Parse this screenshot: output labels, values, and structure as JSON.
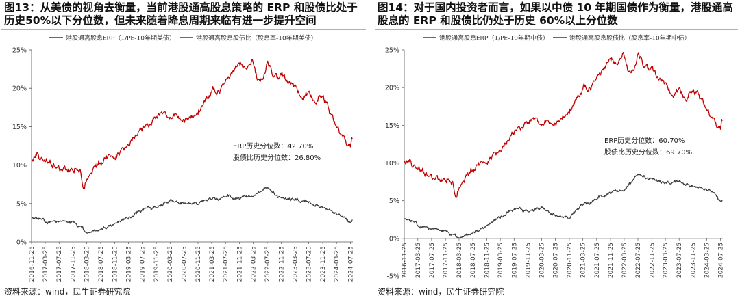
{
  "source_text": "资料来源：wind，民生证券研究院",
  "colors": {
    "erp": "#c00000",
    "dividend": "#3c3c3c",
    "axis": "#555555",
    "title": "#111111"
  },
  "chart_data": [
    {
      "id": "fig13",
      "type": "line",
      "title": "图13：从美债的视角去衡量，当前港股通高股息策略的 ERP 和股债比处于历史50%以下分位数，但未来随着降息周期来临有进一步提升空间",
      "xlabel": "",
      "ylabel": "",
      "ylim": [
        0,
        25
      ],
      "yticks": [
        "0%",
        "5%",
        "10%",
        "15%",
        "20%",
        "25%"
      ],
      "x_range": [
        "2016-11-25",
        "2024-08-15"
      ],
      "xticks": [
        "2016-11-25",
        "2017-03-25",
        "2017-07-25",
        "2017-11-25",
        "2018-03-25",
        "2018-07-25",
        "2018-11-25",
        "2019-03-25",
        "2019-07-25",
        "2019-11-25",
        "2020-03-25",
        "2020-07-25",
        "2020-11-25",
        "2021-03-25",
        "2021-07-25",
        "2021-11-25",
        "2022-03-25",
        "2022-07-25",
        "2022-11-25",
        "2023-03-25",
        "2023-07-25",
        "2023-11-25",
        "2024-03-25",
        "2024-07-25"
      ],
      "legend": {
        "position": "top",
        "entries": [
          "港股通高股息ERP（1/PE-10年期美债）",
          "港股通高股息股债比（股息率-10年期美债）"
        ]
      },
      "annotations": [
        "ERP历史分位数：42.70%",
        "股债比历史分位数：26.80%"
      ],
      "grid": false,
      "series": [
        {
          "name": "港股通高股息ERP（1/PE-10年期美债）",
          "x": [
            "2016-11-25",
            "2017-01-15",
            "2017-03-25",
            "2017-06-01",
            "2017-08-01",
            "2017-10-01",
            "2017-12-01",
            "2018-01-25",
            "2018-02-20",
            "2018-04-01",
            "2018-06-01",
            "2018-08-01",
            "2018-10-01",
            "2018-11-25",
            "2019-01-15",
            "2019-03-25",
            "2019-05-15",
            "2019-07-25",
            "2019-09-01",
            "2019-10-15",
            "2019-12-01",
            "2020-01-20",
            "2020-03-20",
            "2020-05-01",
            "2020-07-01",
            "2020-09-01",
            "2020-11-01",
            "2020-12-15",
            "2021-02-01",
            "2021-04-01",
            "2021-06-01",
            "2021-08-15",
            "2021-10-15",
            "2021-12-01",
            "2022-01-15",
            "2022-03-15",
            "2022-05-01",
            "2022-06-15",
            "2022-08-01",
            "2022-09-15",
            "2022-11-01",
            "2022-12-15",
            "2023-02-01",
            "2023-04-01",
            "2023-06-01",
            "2023-08-01",
            "2023-10-01",
            "2023-12-01",
            "2024-01-20",
            "2024-03-15",
            "2024-05-01",
            "2024-06-15",
            "2024-07-25",
            "2024-08-10"
          ],
          "values": [
            10.8,
            11.2,
            10.5,
            10.0,
            9.6,
            9.4,
            9.2,
            9.8,
            7.6,
            8.6,
            9.7,
            10.6,
            11.2,
            11.5,
            11.7,
            12.8,
            13.6,
            15.0,
            15.3,
            15.0,
            16.5,
            16.8,
            16.0,
            17.0,
            15.8,
            15.6,
            16.8,
            17.4,
            18.8,
            19.8,
            19.3,
            21.5,
            22.6,
            23.0,
            22.5,
            23.5,
            21.0,
            21.5,
            23.3,
            22.0,
            21.6,
            21.5,
            20.5,
            19.6,
            18.8,
            19.2,
            18.4,
            18.7,
            17.2,
            15.4,
            14.2,
            12.7,
            12.2,
            13.4
          ]
        },
        {
          "name": "港股通高股息股债比（股息率-10年期美债）",
          "x": [
            "2016-11-25",
            "2017-03-25",
            "2017-07-25",
            "2017-11-25",
            "2018-02-01",
            "2018-03-25",
            "2018-07-25",
            "2018-11-25",
            "2019-03-25",
            "2019-07-25",
            "2019-11-25",
            "2020-03-25",
            "2020-07-25",
            "2020-11-25",
            "2021-03-25",
            "2021-07-25",
            "2021-11-25",
            "2022-03-25",
            "2022-07-25",
            "2022-11-25",
            "2023-03-25",
            "2023-07-25",
            "2023-11-25",
            "2024-03-25",
            "2024-05-15",
            "2024-07-25",
            "2024-08-10"
          ],
          "values": [
            3.1,
            2.9,
            2.6,
            2.4,
            1.9,
            1.2,
            1.8,
            2.4,
            3.2,
            4.2,
            4.6,
            5.2,
            5.0,
            5.2,
            5.3,
            6.0,
            5.8,
            6.1,
            6.8,
            5.5,
            5.5,
            5.1,
            4.5,
            3.8,
            3.4,
            2.5,
            2.9
          ]
        }
      ]
    },
    {
      "id": "fig14",
      "type": "line",
      "title": "图14：对于国内投资者而言，如果以中债 10 年期国债作为衡量，港股通高股息的 ERP 和股债比仍处于历史 60%以上分位数",
      "xlabel": "",
      "ylabel": "",
      "ylim": [
        -5,
        25
      ],
      "yticks": [
        "-5%",
        "0%",
        "5%",
        "10%",
        "15%",
        "20%",
        "25%"
      ],
      "x_range": [
        "2016-11-25",
        "2024-08-15"
      ],
      "xticks": [
        "2016-11-25",
        "2017-03-25",
        "2017-07-25",
        "2017-11-25",
        "2018-03-25",
        "2018-07-25",
        "2018-11-25",
        "2019-03-25",
        "2019-07-25",
        "2019-11-25",
        "2020-03-25",
        "2020-07-25",
        "2020-11-25",
        "2021-03-25",
        "2021-07-25",
        "2021-11-25",
        "2022-03-25",
        "2022-07-25",
        "2022-11-25",
        "2023-03-25",
        "2023-07-25",
        "2023-11-25",
        "2024-03-25",
        "2024-07-25"
      ],
      "legend": {
        "position": "top",
        "entries": [
          "港股通高股息ERP（1/PE-10年期中债）",
          "港股通高股息股债比（股息率-10年期中债）"
        ]
      },
      "annotations": [
        "ERP历史分位数：60.70%",
        "股债比历史分位数：69.70%"
      ],
      "grid": false,
      "series": [
        {
          "name": "港股通高股息ERP（1/PE-10年期中债）",
          "x": [
            "2016-11-25",
            "2017-01-15",
            "2017-03-25",
            "2017-06-01",
            "2017-08-01",
            "2017-10-01",
            "2017-12-01",
            "2018-01-25",
            "2018-02-20",
            "2018-04-01",
            "2018-06-01",
            "2018-08-01",
            "2018-10-01",
            "2018-11-25",
            "2019-01-15",
            "2019-03-25",
            "2019-05-15",
            "2019-07-25",
            "2019-09-01",
            "2019-10-15",
            "2019-12-01",
            "2020-01-20",
            "2020-03-20",
            "2020-05-01",
            "2020-07-01",
            "2020-09-01",
            "2020-11-01",
            "2020-12-15",
            "2021-02-01",
            "2021-04-01",
            "2021-06-01",
            "2021-08-15",
            "2021-10-15",
            "2021-12-01",
            "2022-01-15",
            "2022-03-15",
            "2022-05-01",
            "2022-06-15",
            "2022-08-01",
            "2022-09-15",
            "2022-11-01",
            "2022-12-15",
            "2023-02-01",
            "2023-04-01",
            "2023-06-01",
            "2023-08-01",
            "2023-10-01",
            "2023-12-01",
            "2024-01-20",
            "2024-03-15",
            "2024-05-01",
            "2024-06-15",
            "2024-07-25",
            "2024-08-10"
          ],
          "values": [
            10.3,
            10.0,
            9.2,
            8.6,
            8.2,
            7.8,
            7.6,
            7.9,
            6.1,
            7.2,
            8.3,
            9.4,
            10.0,
            10.6,
            10.9,
            11.8,
            12.6,
            14.3,
            14.8,
            14.4,
            15.6,
            15.9,
            14.9,
            16.0,
            15.0,
            15.2,
            16.7,
            17.4,
            18.9,
            20.1,
            19.6,
            21.9,
            23.0,
            23.6,
            23.0,
            24.4,
            22.0,
            22.6,
            24.4,
            23.2,
            22.7,
            22.0,
            20.9,
            19.8,
            19.0,
            19.6,
            18.6,
            19.4,
            19.0,
            17.5,
            16.3,
            14.9,
            14.3,
            15.6
          ]
        },
        {
          "name": "港股通高股息股债比（股息率-10年期中债）",
          "x": [
            "2016-11-25",
            "2017-03-25",
            "2017-07-25",
            "2017-11-25",
            "2018-02-01",
            "2018-03-25",
            "2018-07-25",
            "2018-11-25",
            "2019-03-25",
            "2019-07-25",
            "2019-11-25",
            "2020-03-25",
            "2020-07-25",
            "2020-11-25",
            "2021-03-25",
            "2021-07-25",
            "2021-11-25",
            "2022-03-25",
            "2022-07-25",
            "2022-11-25",
            "2023-03-25",
            "2023-07-25",
            "2023-11-25",
            "2024-03-25",
            "2024-05-15",
            "2024-07-25",
            "2024-08-10"
          ],
          "values": [
            2.6,
            2.0,
            1.2,
            0.8,
            0.4,
            0.1,
            0.9,
            1.7,
            2.9,
            3.9,
            3.7,
            3.9,
            3.0,
            2.9,
            4.2,
            5.3,
            6.2,
            6.5,
            8.2,
            7.7,
            7.3,
            7.5,
            6.9,
            6.6,
            6.3,
            4.9,
            5.1
          ]
        }
      ]
    }
  ]
}
